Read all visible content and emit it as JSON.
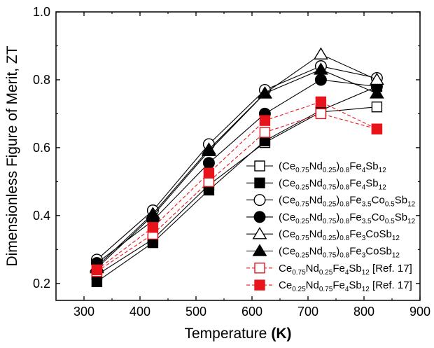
{
  "chart_data": {
    "type": "line",
    "xlabel_main": "Temperature",
    "xlabel_unit": "(K)",
    "ylabel": "Dimensionless Figure of Merit, ZT",
    "xlim": [
      250,
      900
    ],
    "ylim": [
      0.15,
      1.0
    ],
    "xticks": [
      300,
      400,
      500,
      600,
      700,
      800,
      900
    ],
    "yticks": [
      0.2,
      0.4,
      0.6,
      0.8,
      1.0
    ],
    "ytick_labels": [
      "0.2",
      "0.4",
      "0.6",
      "0.8",
      "1.0"
    ],
    "x": [
      323,
      423,
      523,
      623,
      723,
      823
    ],
    "colors": {
      "black": "#000000",
      "red": "#e8141b"
    },
    "series": [
      {
        "name": "(Ce0.75Nd0.25)0.8Fe4Sb12",
        "label_parts": [
          [
            "(Ce",
            ""
          ],
          [
            "0.75",
            "sub"
          ],
          [
            "Nd",
            ""
          ],
          [
            "0.25",
            "sub"
          ],
          [
            ")",
            ""
          ],
          [
            "0.8",
            "sub"
          ],
          [
            "Fe",
            ""
          ],
          [
            "4",
            "sub"
          ],
          [
            "Sb",
            ""
          ],
          [
            "12",
            "sub"
          ]
        ],
        "marker": "square",
        "fill": "open",
        "color": "black",
        "dash": false,
        "values": [
          0.225,
          0.33,
          0.49,
          0.615,
          0.705,
          0.72
        ]
      },
      {
        "name": "(Ce0.25Nd0.75)0.8Fe4Sb12",
        "label_parts": [
          [
            "(Ce",
            ""
          ],
          [
            "0.25",
            "sub"
          ],
          [
            "Nd",
            ""
          ],
          [
            "0.75",
            "sub"
          ],
          [
            ")",
            ""
          ],
          [
            "0.8",
            "sub"
          ],
          [
            "Fe",
            ""
          ],
          [
            "4",
            "sub"
          ],
          [
            "Sb",
            ""
          ],
          [
            "12",
            "sub"
          ]
        ],
        "marker": "square",
        "fill": "filled",
        "color": "black",
        "dash": false,
        "values": [
          0.205,
          0.32,
          0.475,
          0.62,
          0.71,
          0.78
        ]
      },
      {
        "name": "(Ce0.75Nd0.25)0.8Fe3.5Co0.5Sb12",
        "label_parts": [
          [
            "(Ce",
            ""
          ],
          [
            "0.75",
            "sub"
          ],
          [
            "Nd",
            ""
          ],
          [
            "0.25",
            "sub"
          ],
          [
            ")",
            ""
          ],
          [
            "0.8",
            "sub"
          ],
          [
            "Fe",
            ""
          ],
          [
            "3.5",
            "sub"
          ],
          [
            "Co",
            ""
          ],
          [
            "0.5",
            "sub"
          ],
          [
            "Sb",
            ""
          ],
          [
            "12",
            "sub"
          ]
        ],
        "marker": "circle",
        "fill": "open",
        "color": "black",
        "dash": false,
        "values": [
          0.27,
          0.415,
          0.61,
          0.77,
          0.84,
          0.805
        ]
      },
      {
        "name": "(Ce0.25Nd0.75)0.8Fe3.5Co0.5Sb12",
        "label_parts": [
          [
            "(Ce",
            ""
          ],
          [
            "0.25",
            "sub"
          ],
          [
            "Nd",
            ""
          ],
          [
            "0.75",
            "sub"
          ],
          [
            ")",
            ""
          ],
          [
            "0.8",
            "sub"
          ],
          [
            "Fe",
            ""
          ],
          [
            "3.5",
            "sub"
          ],
          [
            "Co",
            ""
          ],
          [
            "0.5",
            "sub"
          ],
          [
            "Sb",
            ""
          ],
          [
            "12",
            "sub"
          ]
        ],
        "marker": "circle",
        "fill": "filled",
        "color": "black",
        "dash": false,
        "values": [
          0.26,
          0.385,
          0.555,
          0.7,
          0.8,
          0.78
        ]
      },
      {
        "name": "(Ce0.75Nd0.25)0.8Fe3CoSb12",
        "label_parts": [
          [
            "(Ce",
            ""
          ],
          [
            "0.75",
            "sub"
          ],
          [
            "Nd",
            ""
          ],
          [
            "0.25",
            "sub"
          ],
          [
            ")",
            ""
          ],
          [
            "0.8",
            "sub"
          ],
          [
            "Fe",
            ""
          ],
          [
            "3",
            "sub"
          ],
          [
            "CoSb",
            ""
          ],
          [
            "12",
            "sub"
          ]
        ],
        "marker": "triangle",
        "fill": "open",
        "color": "black",
        "dash": false,
        "values": [
          0.25,
          0.405,
          0.595,
          0.76,
          0.875,
          0.8
        ]
      },
      {
        "name": "(Ce0.25Nd0.75)0.8Fe3CoSb12",
        "label_parts": [
          [
            "(Ce",
            ""
          ],
          [
            "0.25",
            "sub"
          ],
          [
            "Nd",
            ""
          ],
          [
            "0.75",
            "sub"
          ],
          [
            ")",
            ""
          ],
          [
            "0.8",
            "sub"
          ],
          [
            "Fe",
            ""
          ],
          [
            "3",
            "sub"
          ],
          [
            "CoSb",
            ""
          ],
          [
            "12",
            "sub"
          ]
        ],
        "marker": "triangle",
        "fill": "filled",
        "color": "black",
        "dash": false,
        "values": [
          0.245,
          0.4,
          0.59,
          0.76,
          0.83,
          0.76
        ]
      },
      {
        "name": "Ce0.75Nd0.25Fe4Sb12 [Ref. 17]",
        "label_parts": [
          [
            "Ce",
            ""
          ],
          [
            "0.75",
            "sub"
          ],
          [
            "Nd",
            ""
          ],
          [
            "0.25",
            "sub"
          ],
          [
            "Fe",
            ""
          ],
          [
            "4",
            "sub"
          ],
          [
            "Sb",
            ""
          ],
          [
            "12",
            "sub"
          ],
          [
            " [Ref. 17]",
            ""
          ]
        ],
        "marker": "square",
        "fill": "open",
        "color": "red",
        "dash": true,
        "values": [
          0.235,
          0.345,
          0.5,
          0.645,
          0.7,
          0.655
        ]
      },
      {
        "name": "Ce0.25Nd0.75Fe4Sb12 [Ref. 17]",
        "label_parts": [
          [
            "Ce",
            ""
          ],
          [
            "0.25",
            "sub"
          ],
          [
            "Nd",
            ""
          ],
          [
            "0.75",
            "sub"
          ],
          [
            "Fe",
            ""
          ],
          [
            "4",
            "sub"
          ],
          [
            "Sb",
            ""
          ],
          [
            "12",
            "sub"
          ],
          [
            " [Ref. 17]",
            ""
          ]
        ],
        "marker": "square",
        "fill": "filled",
        "color": "red",
        "dash": true,
        "values": [
          0.24,
          0.365,
          0.525,
          0.68,
          0.735,
          0.655
        ]
      }
    ],
    "legend_position": "bottom-right",
    "grid": false
  }
}
